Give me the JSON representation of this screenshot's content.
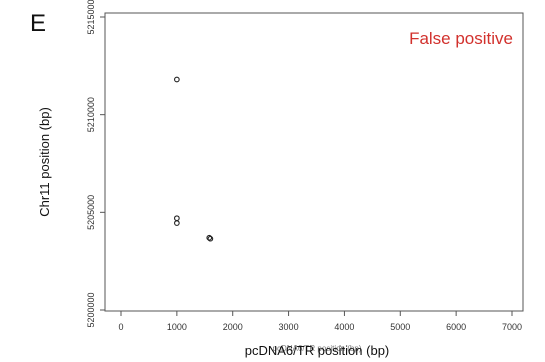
{
  "panel_label": "E",
  "annotation": {
    "text": "False positive",
    "color": "#d2312d"
  },
  "chart_data": {
    "type": "scatter",
    "title": "",
    "xlabel": "pcDNA6/TR position (bp)",
    "xlabel_overlap_text": "pcDNA6/TR position (bp)",
    "ylabel": "Chr11 position (bp)",
    "xlim": [
      0,
      7000
    ],
    "ylim": [
      5200000,
      5215000
    ],
    "x_ticks": [
      0,
      1000,
      2000,
      3000,
      4000,
      5000,
      6000,
      7000
    ],
    "x_tick_labels": [
      "0",
      "1000",
      "2000",
      "3000",
      "4000",
      "5000",
      "6000",
      "7000"
    ],
    "y_ticks": [
      5200000,
      5205000,
      5210000,
      5215000
    ],
    "y_tick_labels": [
      "5200000",
      "5205000",
      "5210000",
      "5215000"
    ],
    "grid": false,
    "marker": "open-circle",
    "points": [
      {
        "x": 1000,
        "y": 5211800
      },
      {
        "x": 1000,
        "y": 5204700
      },
      {
        "x": 1000,
        "y": 5204450
      },
      {
        "x": 1580,
        "y": 5203700
      },
      {
        "x": 1600,
        "y": 5203650
      }
    ]
  }
}
